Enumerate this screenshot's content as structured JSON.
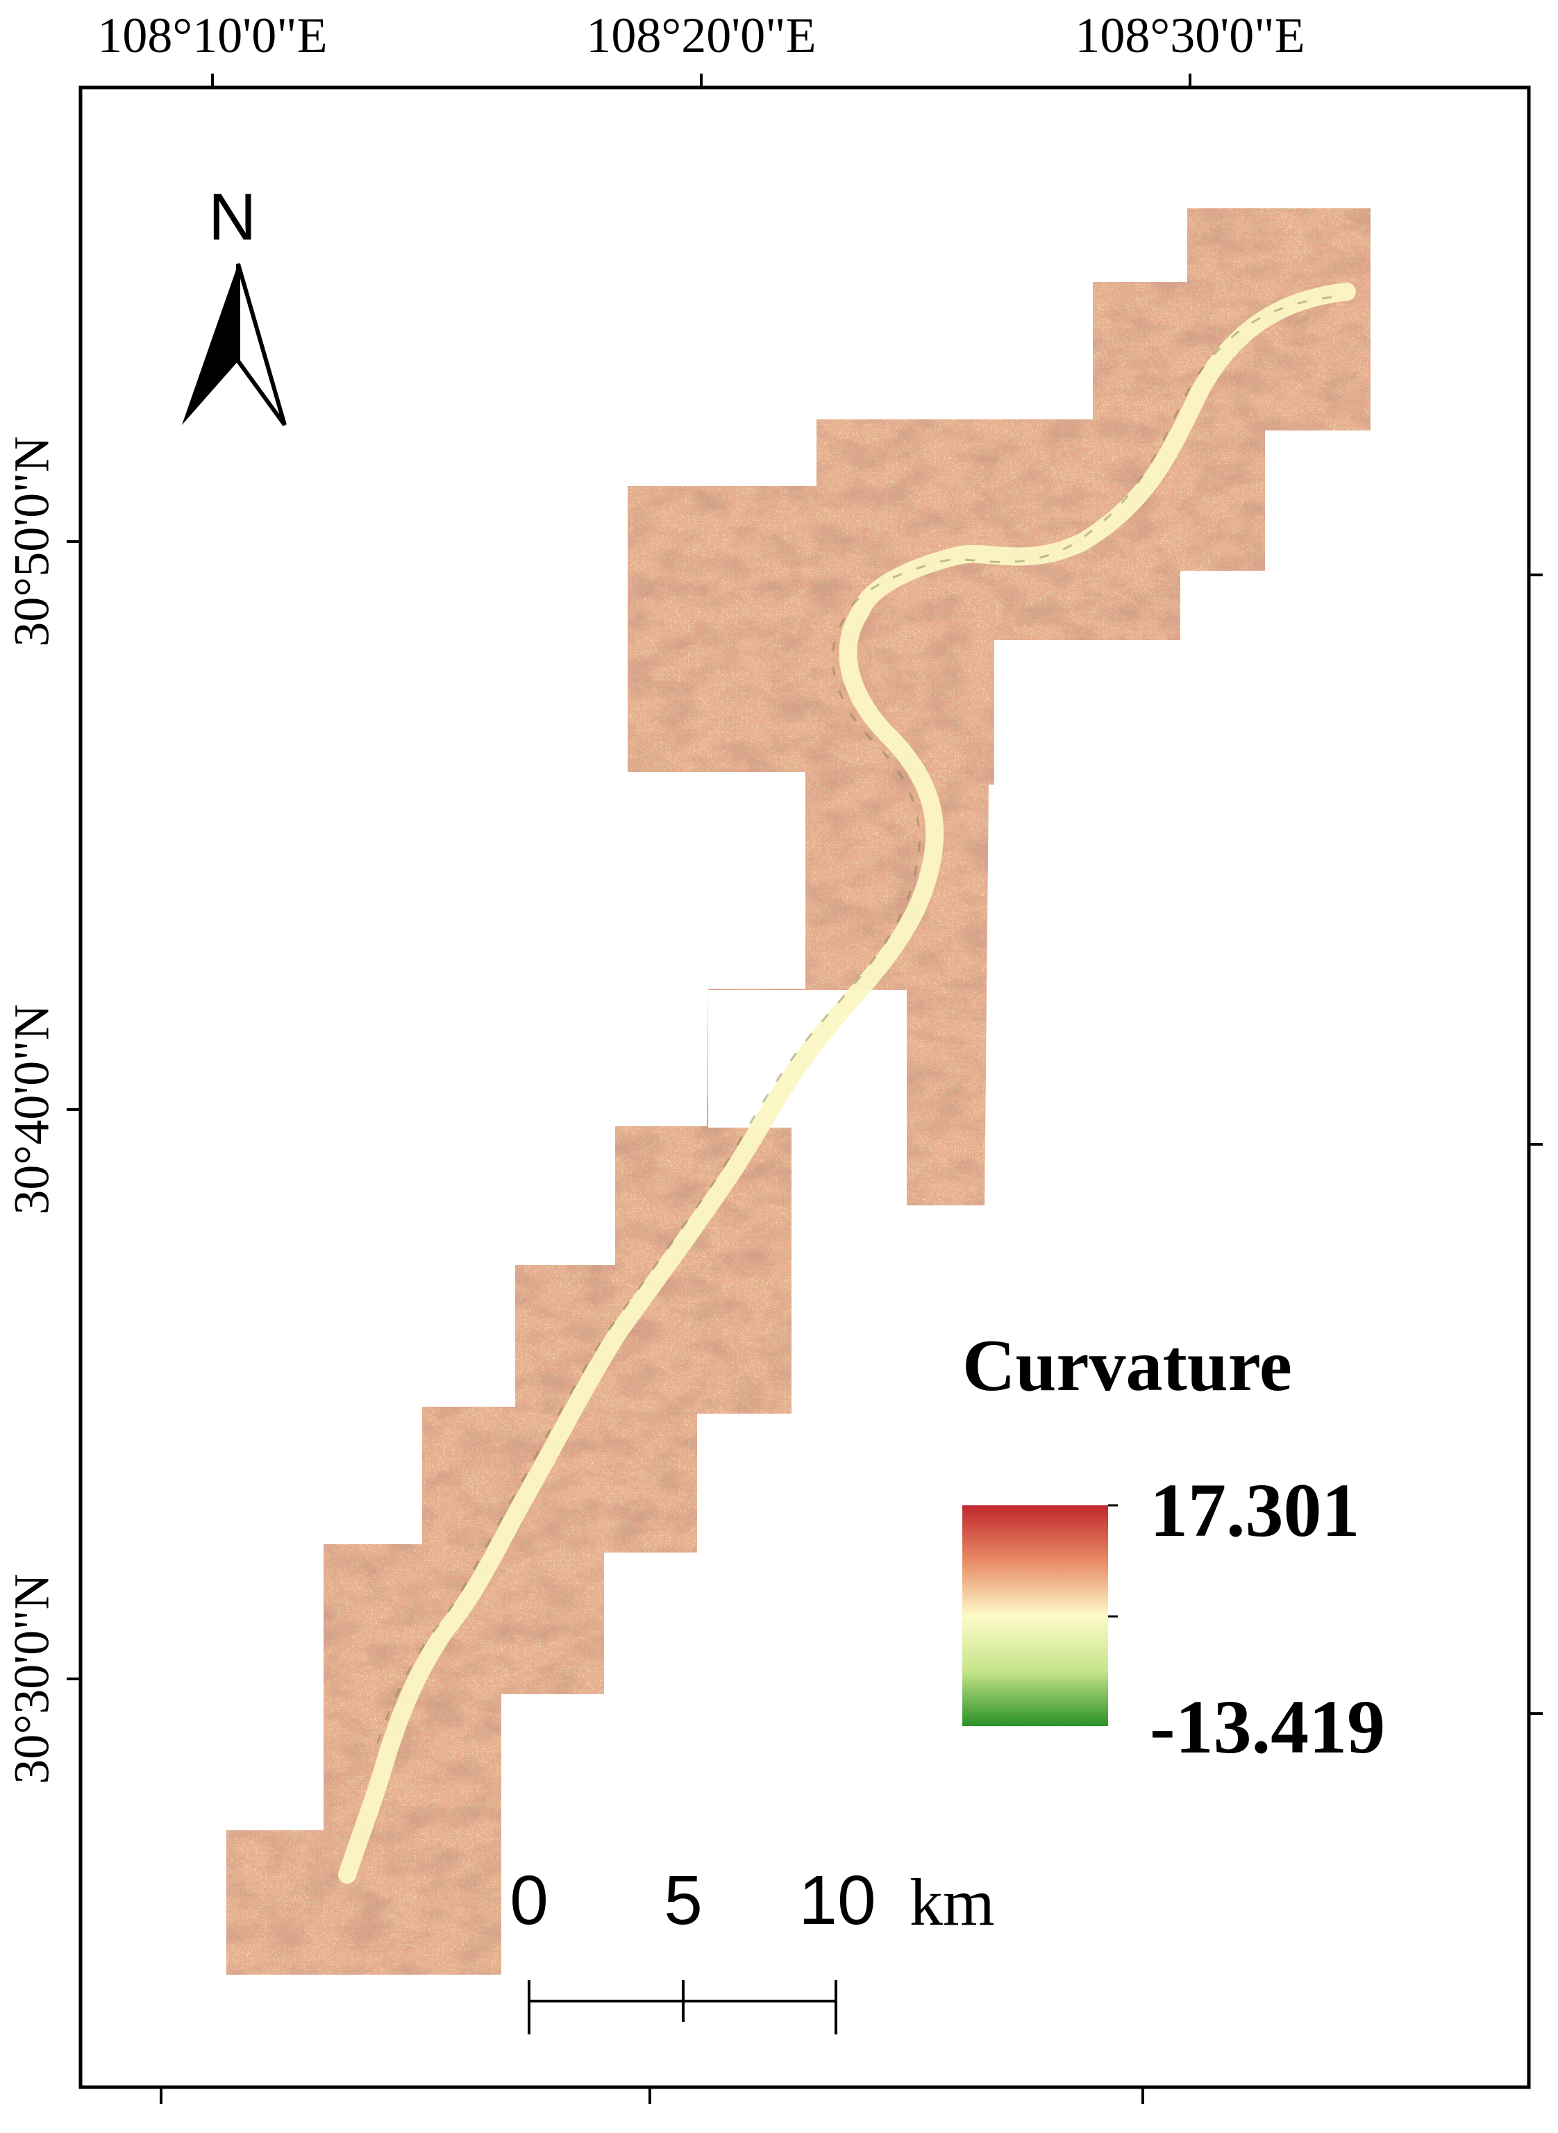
{
  "graticule": {
    "top_labels": [
      "108°10'0\"E",
      "108°20'0\"E",
      "108°30'0\"E"
    ],
    "left_labels": [
      "30°50'0\"N",
      "30°40'0\"N",
      "30°30'0\"N"
    ]
  },
  "north_arrow": {
    "label": "N",
    "icon": "north-arrow-icon"
  },
  "legend": {
    "title": "Curvature",
    "max_label": "17.301",
    "min_label": "-13.419",
    "colors": {
      "high": "#c0272d",
      "mid": "#fdfac8",
      "low": "#2a9128"
    }
  },
  "scale_bar": {
    "labels": [
      "0",
      "5",
      "10"
    ],
    "unit": "km"
  },
  "terrain_colors": {
    "base": "#ece6ae",
    "shadow": "#8f8a55",
    "valley": "#fbf7c4"
  }
}
